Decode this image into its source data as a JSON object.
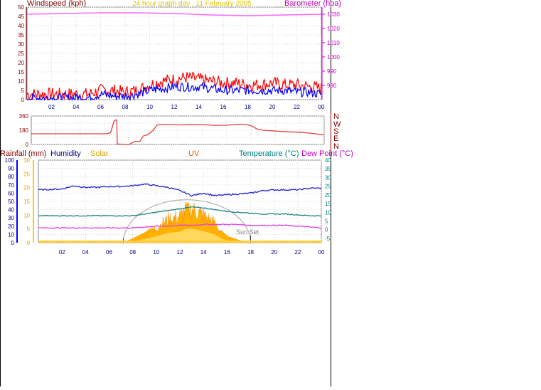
{
  "header": {
    "windspeed_label": "Windspeed (kph)",
    "title": "24 hour graph day , 11 February 2005",
    "barometer_label": "Barometer (hpa)"
  },
  "panel3_labels": {
    "rainfall": "Rainfall (mm)",
    "humidity": "Humidity",
    "solar": "Solar",
    "uv": "UV",
    "temperature": "Temperature (°C)",
    "dewpoint": "Dew Point (°C)",
    "sunset": "Sun Set"
  },
  "colors": {
    "windspeed": "#800000",
    "title": "#e0c000",
    "barometer": "#c000c0",
    "rainfall": "#800000",
    "humidity": "#000080",
    "solar": "#e0a000",
    "uv": "#e06000",
    "temperature": "#008080",
    "dewpoint": "#c000c0"
  },
  "chart_data": [
    {
      "type": "line",
      "xlabel": "",
      "ylabel": "Windspeed (kph)",
      "x_ticks": [
        "02",
        "04",
        "06",
        "08",
        "10",
        "12",
        "14",
        "16",
        "18",
        "20",
        "22",
        "00"
      ],
      "ylim": [
        0,
        50
      ],
      "y_ticks": [
        0,
        5,
        10,
        15,
        20,
        25,
        30,
        35,
        40,
        45,
        50
      ],
      "y2lim": [
        970,
        1035
      ],
      "y2_ticks": [
        980,
        990,
        1000,
        1010,
        1020,
        1030
      ],
      "series": [
        {
          "name": "Windspeed (kph)",
          "axis": "left",
          "color": "#ff0000",
          "x": [
            0,
            2,
            4,
            5,
            6,
            7,
            8,
            9,
            10,
            11,
            12,
            13,
            14,
            15,
            16,
            17,
            18,
            19,
            20,
            21,
            22,
            23,
            24
          ],
          "values": [
            3,
            3,
            3,
            3,
            5,
            5,
            4,
            5,
            8,
            10,
            11,
            12,
            11,
            10,
            9,
            9,
            8,
            8,
            9,
            8,
            8,
            7,
            6
          ]
        },
        {
          "name": "Windspeed (kph)",
          "axis": "left",
          "color": "#0000ff",
          "x": [
            0,
            2,
            4,
            5,
            6,
            7,
            8,
            9,
            10,
            11,
            12,
            13,
            14,
            15,
            16,
            17,
            18,
            19,
            20,
            21,
            22,
            23,
            24
          ],
          "values": [
            1,
            1,
            1,
            1,
            3,
            2,
            2,
            3,
            5,
            6,
            7,
            7,
            7,
            6,
            5,
            5,
            5,
            5,
            5,
            5,
            4,
            4,
            3
          ]
        },
        {
          "name": "Barometer (hpa)",
          "axis": "right",
          "color": "#ff66ff",
          "x": [
            0,
            3,
            6,
            9,
            12,
            15,
            18,
            21,
            24
          ],
          "values": [
            1030,
            1030.5,
            1031,
            1031,
            1030.5,
            1029.5,
            1029,
            1029.5,
            1030
          ]
        }
      ],
      "grid": true
    },
    {
      "type": "line",
      "ylabel": "Wind direction",
      "x_ticks": [
        "02",
        "04",
        "06",
        "08",
        "10",
        "12",
        "14",
        "16",
        "18",
        "20",
        "22",
        "00"
      ],
      "ylim": [
        0,
        360
      ],
      "y_ticks": [
        0,
        90,
        180,
        270,
        360
      ],
      "y2_ticks": [
        "N",
        "W",
        "S",
        "E",
        "N"
      ],
      "series": [
        {
          "name": "Wind direction",
          "color": "#e04040",
          "x": [
            0,
            6.2,
            6.5,
            6.8,
            7.0,
            7.05,
            7.2,
            7.8,
            8.0,
            8.5,
            8.9,
            9.2,
            9.5,
            10.0,
            10.3,
            11,
            12,
            13,
            14,
            15,
            16,
            17,
            17.5,
            18,
            18.5,
            19,
            20,
            21,
            22,
            23,
            24
          ],
          "values": [
            135,
            135,
            150,
            300,
            315,
            5,
            5,
            0,
            0,
            40,
            40,
            110,
            120,
            180,
            245,
            255,
            250,
            250,
            250,
            245,
            245,
            255,
            255,
            240,
            195,
            180,
            170,
            160,
            155,
            140,
            120
          ]
        }
      ],
      "grid": true
    },
    {
      "type": "line",
      "x_ticks": [
        "02",
        "04",
        "06",
        "08",
        "10",
        "12",
        "14",
        "16",
        "18",
        "20",
        "22",
        "00"
      ],
      "ylim": [
        0,
        100
      ],
      "y_ticks": [
        0,
        10,
        20,
        30,
        40,
        50,
        60,
        70,
        80,
        90,
        100
      ],
      "rain_ticks": [
        0,
        5,
        10,
        15,
        20,
        25,
        30
      ],
      "y2lim": [
        -7.5,
        40
      ],
      "y2_ticks": [
        -5,
        0,
        5,
        10,
        15,
        20,
        25,
        30,
        35,
        40
      ],
      "series": [
        {
          "name": "Humidity",
          "color": "#2020d0",
          "x": [
            0,
            2,
            3,
            4,
            5,
            6,
            7,
            8,
            9,
            10,
            11,
            12,
            13,
            14,
            15,
            16,
            17,
            18,
            19,
            20,
            21,
            22,
            23,
            24
          ],
          "values": [
            64,
            65,
            69,
            67,
            67,
            68,
            68,
            69,
            71,
            69,
            67,
            63,
            57,
            60,
            57,
            58,
            59,
            60,
            63,
            64,
            64,
            64,
            66,
            66
          ]
        },
        {
          "name": "Temperature (°C)",
          "color": "#208080",
          "x": [
            0,
            3,
            6,
            8,
            9,
            10,
            11,
            12,
            13,
            14,
            15,
            16,
            17,
            18,
            19,
            20,
            21,
            22,
            23,
            24
          ],
          "values": [
            8,
            8,
            8,
            8,
            9,
            10,
            11,
            12,
            13,
            12.5,
            11.5,
            10.5,
            10,
            9.5,
            9,
            9,
            9,
            8.5,
            8,
            8
          ]
        },
        {
          "name": "Dew Point (°C)",
          "color": "#e040e0",
          "x": [
            0,
            3,
            6,
            8,
            9,
            10,
            11,
            12,
            13,
            14,
            15,
            16,
            17,
            18,
            19,
            20,
            21,
            22,
            23,
            24
          ],
          "values": [
            1,
            1,
            1,
            1,
            1.5,
            2,
            2,
            2.5,
            2.5,
            3,
            3,
            3,
            3,
            2.5,
            2.5,
            2.5,
            2.5,
            2,
            1.5,
            1
          ]
        },
        {
          "name": "Solar",
          "color": "#ffb000",
          "axis": "left",
          "x": [
            7.2,
            8,
            9,
            10,
            10.5,
            11,
            11.5,
            12,
            12.5,
            13,
            13.5,
            14,
            14.5,
            15,
            15.5,
            16,
            17,
            18
          ],
          "values": [
            0,
            5,
            12,
            22,
            28,
            34,
            36,
            38,
            48,
            48,
            45,
            40,
            34,
            28,
            15,
            8,
            3,
            0
          ]
        }
      ],
      "sunrise_x": 7.2,
      "sunset_x": 18,
      "grid": true
    }
  ]
}
